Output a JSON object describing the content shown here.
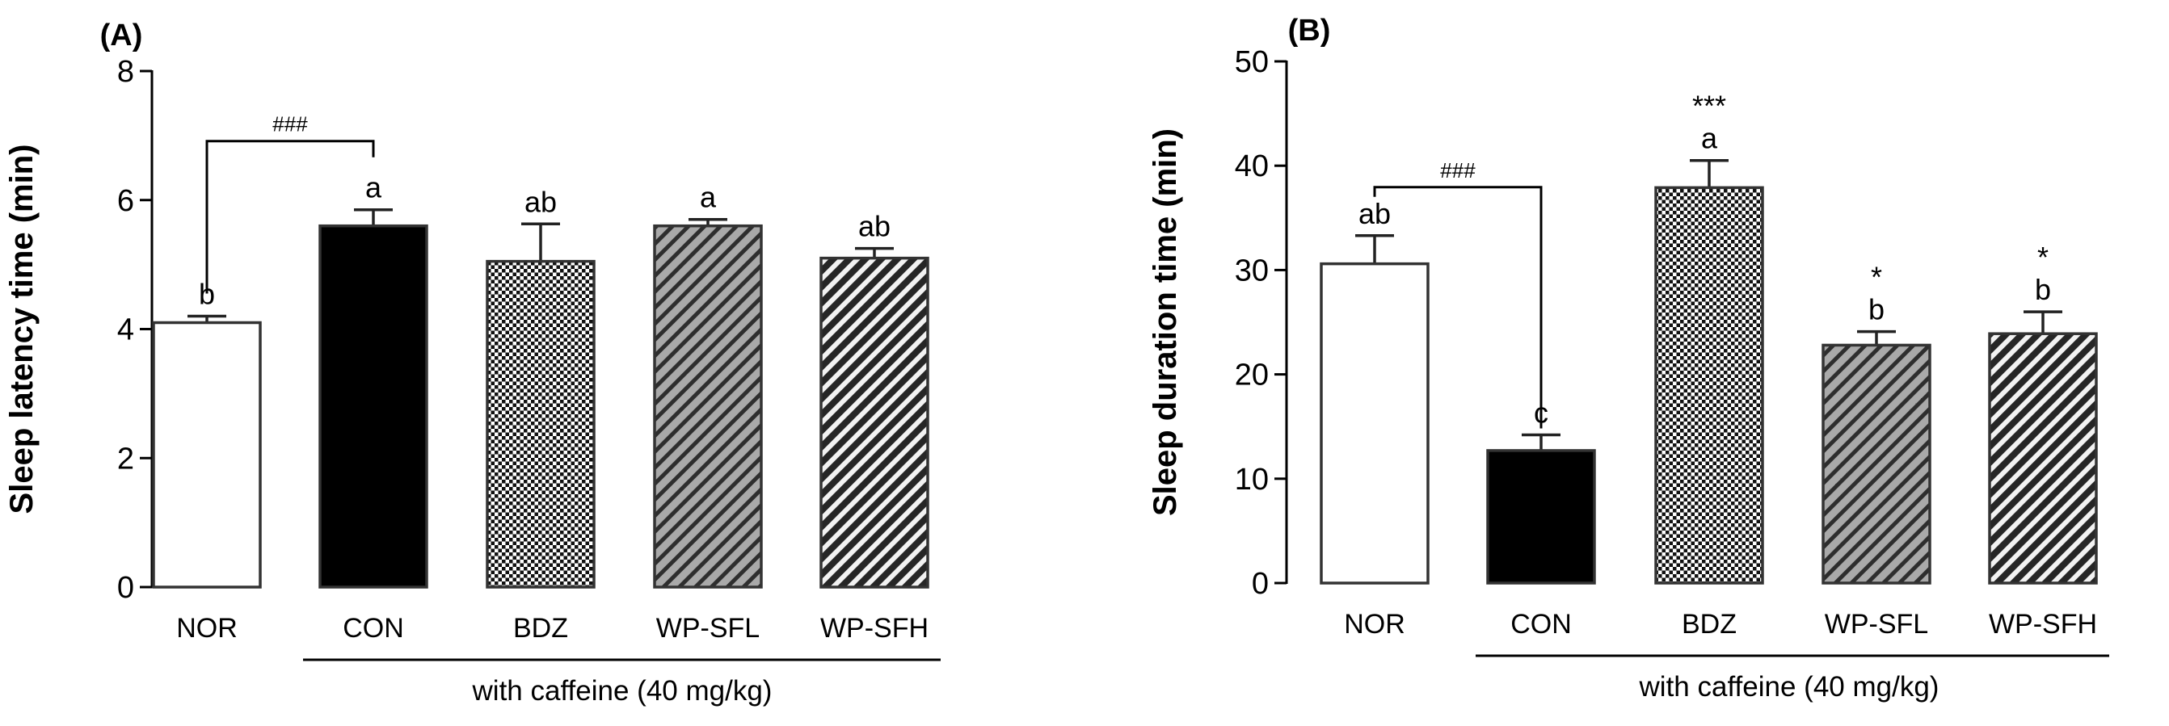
{
  "chart_data": [
    {
      "type": "bar",
      "panel_label": "(A)",
      "ylabel": "Sleep latency time (min)",
      "ylim": [
        0,
        8
      ],
      "yticks": [
        0,
        2,
        4,
        6,
        8
      ],
      "categories": [
        "NOR",
        "CON",
        "BDZ",
        "WP-SFL",
        "WP-SFH"
      ],
      "values": [
        4.1,
        5.6,
        5.05,
        5.6,
        5.1
      ],
      "errors": [
        0.1,
        0.25,
        0.58,
        0.1,
        0.15
      ],
      "fills": [
        "white",
        "black",
        "dots",
        "gray-hatch",
        "dark-hatch"
      ],
      "letters": [
        "b",
        "a",
        "ab",
        "a",
        "ab"
      ],
      "stars": [
        "",
        "",
        "",
        "",
        ""
      ],
      "bracket": {
        "from": 0,
        "to": 1,
        "label": "###"
      },
      "group_label": "with caffeine (40 mg/kg)"
    },
    {
      "type": "bar",
      "panel_label": "(B)",
      "ylabel": "Sleep duration time (min)",
      "ylim": [
        0,
        50
      ],
      "yticks": [
        0,
        10,
        20,
        30,
        40,
        50
      ],
      "categories": [
        "NOR",
        "CON",
        "BDZ",
        "WP-SFL",
        "WP-SFH"
      ],
      "values": [
        30.6,
        12.7,
        37.9,
        22.8,
        23.9
      ],
      "errors": [
        2.7,
        1.5,
        2.6,
        1.3,
        2.1
      ],
      "fills": [
        "white",
        "black",
        "dots",
        "gray-hatch",
        "dark-hatch"
      ],
      "letters": [
        "ab",
        "c",
        "a",
        "b",
        "b"
      ],
      "stars": [
        "",
        "",
        "***",
        "*",
        "*"
      ],
      "bracket": {
        "from": 0,
        "to": 1,
        "label": "###"
      },
      "group_label": "with caffeine (40 mg/kg)"
    }
  ]
}
